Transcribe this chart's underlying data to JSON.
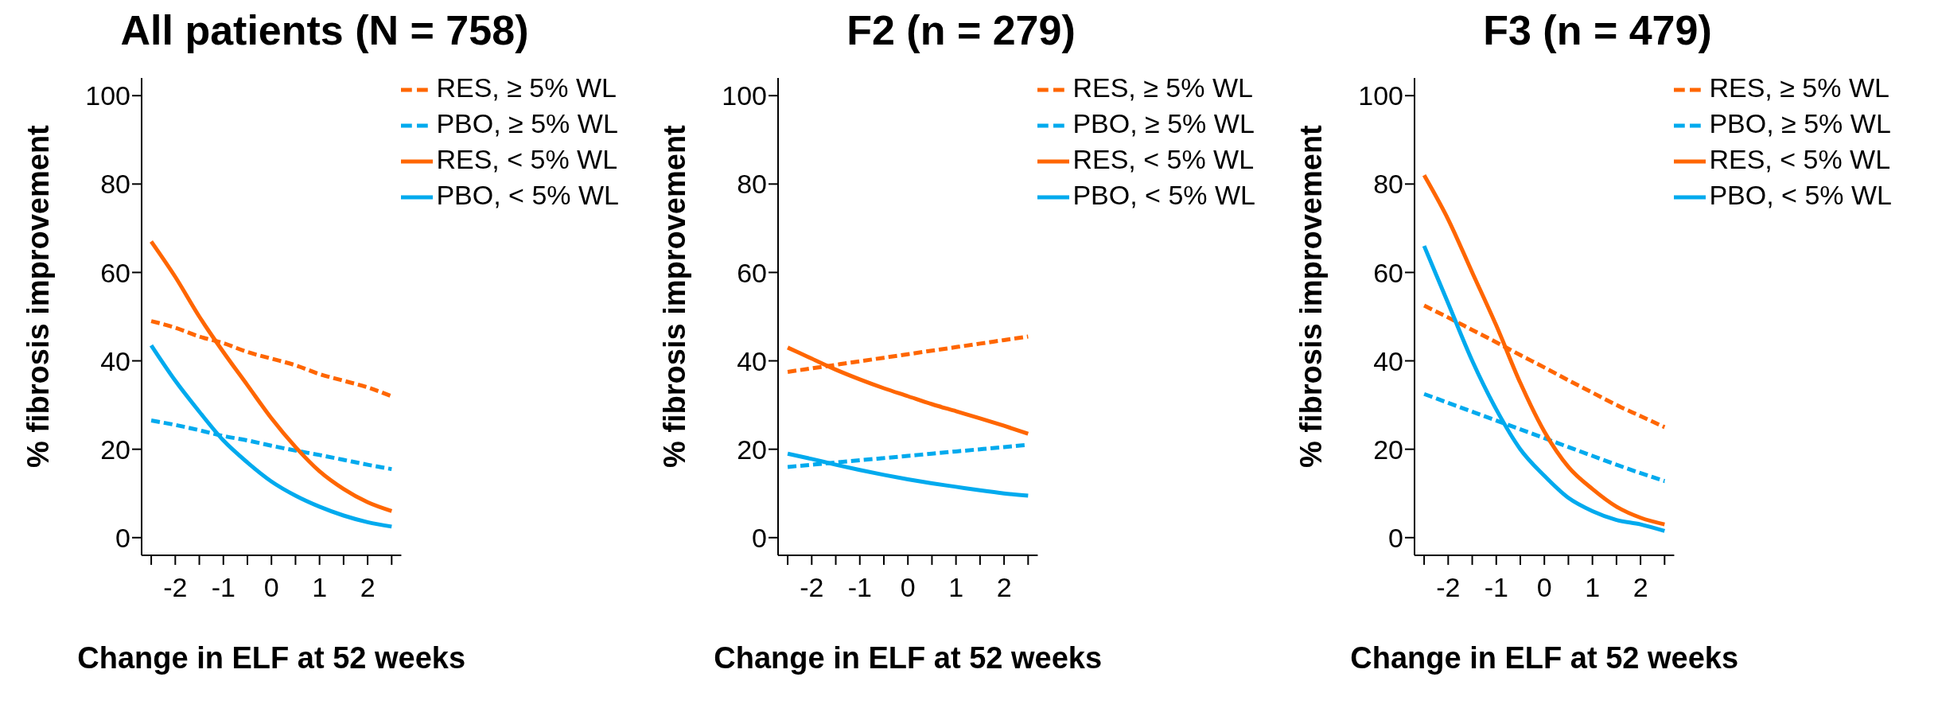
{
  "chart_data": [
    {
      "type": "line",
      "title": "All patients (N = 758)",
      "xlabel": "Change in ELF at 52 weeks",
      "ylabel": "% fibrosis improvement",
      "x": [
        -2.5,
        -2,
        -1.5,
        -1,
        -0.5,
        0,
        0.5,
        1,
        1.5,
        2,
        2.5
      ],
      "xlim": [
        -2.7,
        2.7
      ],
      "xticks": [
        {
          "value": -2.5,
          "label": null
        },
        -2,
        {
          "value": -1.5,
          "label": null
        },
        -1,
        {
          "value": -0.5,
          "label": null
        },
        0,
        {
          "value": 0.5,
          "label": null
        },
        1,
        {
          "value": 1.5,
          "label": null
        },
        2,
        {
          "value": 2.5,
          "label": null
        }
      ],
      "ylim": [
        -4,
        104
      ],
      "yticks": [
        0,
        20,
        40,
        60,
        80,
        100
      ],
      "grid": false,
      "legend": "top right",
      "marker": "none",
      "series": [
        {
          "name": "RES, ≥ 5% WL",
          "color": "#ff6600",
          "line_style": "dashed",
          "values": [
            49,
            47.5,
            45.5,
            44,
            42,
            40.5,
            39,
            37,
            35.5,
            34,
            32
          ]
        },
        {
          "name": "PBO, ≥ 5% WL",
          "color": "#00aaee",
          "line_style": "dashed",
          "values": [
            26.5,
            25.5,
            24.3,
            23,
            22,
            20.8,
            19.7,
            18.7,
            17.6,
            16.5,
            15.5
          ]
        },
        {
          "name": "RES, < 5% WL",
          "color": "#ff6600",
          "line_style": "solid",
          "values": [
            67,
            59,
            50,
            42,
            34.5,
            27,
            20.5,
            15,
            11,
            8,
            6
          ]
        },
        {
          "name": "PBO, < 5% WL",
          "color": "#00aaee",
          "line_style": "solid",
          "values": [
            43.5,
            35.5,
            28.5,
            22,
            17,
            12.7,
            9.5,
            7,
            5,
            3.5,
            2.5
          ]
        }
      ]
    },
    {
      "type": "line",
      "title": "F2 (n = 279)",
      "xlabel": "Change in ELF at 52 weeks",
      "ylabel": "% fibrosis improvement",
      "x": [
        -2.5,
        -2,
        -1.5,
        -1,
        -0.5,
        0,
        0.5,
        1,
        1.5,
        2,
        2.5
      ],
      "xlim": [
        -2.7,
        2.7
      ],
      "xticks": [
        {
          "value": -2.5,
          "label": null
        },
        -2,
        {
          "value": -1.5,
          "label": null
        },
        -1,
        {
          "value": -0.5,
          "label": null
        },
        0,
        {
          "value": 0.5,
          "label": null
        },
        1,
        {
          "value": 1.5,
          "label": null
        },
        2,
        {
          "value": 2.5,
          "label": null
        }
      ],
      "ylim": [
        -4,
        104
      ],
      "yticks": [
        0,
        20,
        40,
        60,
        80,
        100
      ],
      "grid": false,
      "legend": "top right",
      "marker": "none",
      "series": [
        {
          "name": "RES, ≥ 5% WL",
          "color": "#ff6600",
          "line_style": "dashed",
          "values": [
            37.5,
            38.3,
            39.1,
            39.9,
            40.7,
            41.5,
            42.3,
            43.1,
            43.9,
            44.7,
            45.5
          ]
        },
        {
          "name": "PBO, ≥ 5% WL",
          "color": "#00aaee",
          "line_style": "dashed",
          "values": [
            16,
            16.5,
            17,
            17.5,
            18,
            18.5,
            19,
            19.5,
            20,
            20.5,
            21
          ]
        },
        {
          "name": "RES, < 5% WL",
          "color": "#ff6600",
          "line_style": "solid",
          "values": [
            43,
            40.5,
            38,
            35.8,
            33.8,
            32,
            30.2,
            28.6,
            27,
            25.3,
            23.5
          ]
        },
        {
          "name": "PBO, < 5% WL",
          "color": "#00aaee",
          "line_style": "solid",
          "values": [
            19,
            17.8,
            16.5,
            15.3,
            14.2,
            13.2,
            12.3,
            11.5,
            10.7,
            10,
            9.5
          ]
        }
      ]
    },
    {
      "type": "line",
      "title": "F3 (n = 479)",
      "xlabel": "Change in ELF at 52 weeks",
      "ylabel": "% fibrosis improvement",
      "x": [
        -2.5,
        -2,
        -1.5,
        -1,
        -0.5,
        0,
        0.5,
        1,
        1.5,
        2,
        2.5
      ],
      "xlim": [
        -2.7,
        2.7
      ],
      "xticks": [
        {
          "value": -2.5,
          "label": null
        },
        -2,
        {
          "value": -1.5,
          "label": null
        },
        -1,
        {
          "value": -0.5,
          "label": null
        },
        0,
        {
          "value": 0.5,
          "label": null
        },
        1,
        {
          "value": 1.5,
          "label": null
        },
        2,
        {
          "value": 2.5,
          "label": null
        }
      ],
      "ylim": [
        -4,
        104
      ],
      "yticks": [
        0,
        20,
        40,
        60,
        80,
        100
      ],
      "grid": false,
      "legend": "top right",
      "marker": "none",
      "series": [
        {
          "name": "RES, ≥ 5% WL",
          "color": "#ff6600",
          "line_style": "dashed",
          "values": [
            52.5,
            49.8,
            47,
            44.2,
            41.3,
            38.5,
            35.6,
            32.8,
            30,
            27.5,
            25
          ]
        },
        {
          "name": "PBO, ≥ 5% WL",
          "color": "#00aaee",
          "line_style": "dashed",
          "values": [
            32.5,
            30.5,
            28.5,
            26.5,
            24.5,
            22.5,
            20.5,
            18.5,
            16.5,
            14.6,
            12.8
          ]
        },
        {
          "name": "RES, < 5% WL",
          "color": "#ff6600",
          "line_style": "solid",
          "values": [
            82,
            72,
            60,
            48,
            35,
            24,
            16,
            11,
            7,
            4.5,
            3
          ]
        },
        {
          "name": "PBO, < 5% WL",
          "color": "#00aaee",
          "line_style": "solid",
          "values": [
            66,
            53,
            40,
            29,
            20,
            14,
            9,
            6,
            4,
            3,
            1.5
          ]
        }
      ]
    }
  ]
}
